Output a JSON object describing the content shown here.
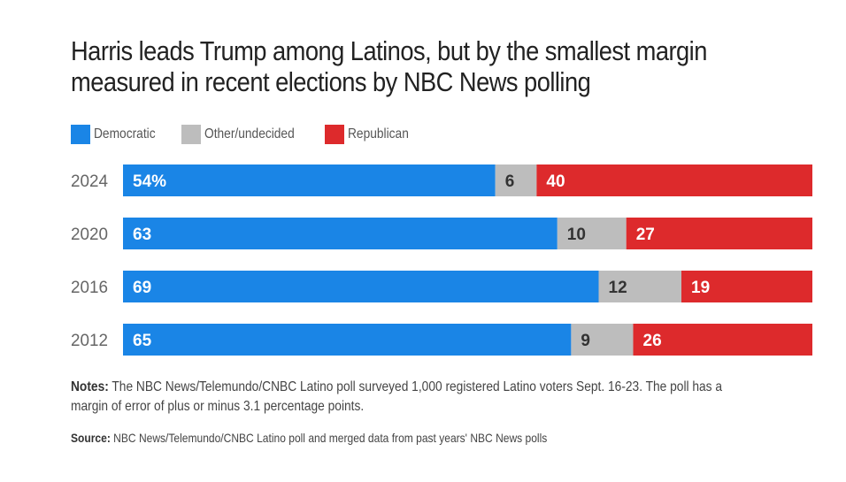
{
  "title_line1": "Harris leads Trump among Latinos, but by the smallest margin",
  "title_line2": "measured in recent elections by NBC News polling",
  "legend": [
    {
      "label": "Democratic",
      "color": "#1a85e6"
    },
    {
      "label": "Other/undecided",
      "color": "#bdbdbd"
    },
    {
      "label": "Republican",
      "color": "#dd2a2c"
    }
  ],
  "notes_label": "Notes:",
  "notes_text": " The NBC News/Telemundo/CNBC Latino poll surveyed 1,000 registered Latino voters Sept. 16-23. The poll has a margin of error of plus or minus 3.1 percentage points.",
  "source_label": "Source:",
  "source_text": " NBC News/Telemundo/CNBC Latino poll and merged data from past years' NBC News polls",
  "chart_data": {
    "type": "bar",
    "orientation": "horizontal",
    "stacked": true,
    "categories": [
      "2024",
      "2020",
      "2016",
      "2012"
    ],
    "series": [
      {
        "name": "Democratic",
        "color": "#1a85e6",
        "values": [
          54,
          63,
          69,
          65
        ],
        "labels": [
          "54%",
          "63",
          "69",
          "65"
        ]
      },
      {
        "name": "Other/undecided",
        "color": "#bdbdbd",
        "values": [
          6,
          10,
          12,
          9
        ],
        "labels": [
          "6",
          "10",
          "12",
          "9"
        ]
      },
      {
        "name": "Republican",
        "color": "#dd2a2c",
        "values": [
          40,
          27,
          19,
          26
        ],
        "labels": [
          "40",
          "27",
          "19",
          "26"
        ]
      }
    ],
    "xlim": [
      0,
      100
    ],
    "grid": false,
    "legend_position": "top-left"
  }
}
